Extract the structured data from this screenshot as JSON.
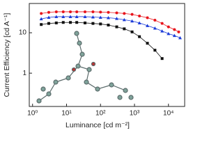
{
  "chart_data": {
    "type": "line",
    "x_label": "Luminance [cd m⁻²]",
    "y_label": "Current Efficiency [cd A⁻¹]",
    "log_x": true,
    "log_y": true,
    "xlim": [
      0.8,
      30000
    ],
    "ylim": [
      0.15,
      53
    ],
    "xticks": [
      {
        "value": 1,
        "label": "10⁰"
      },
      {
        "value": 10,
        "label": "10¹"
      },
      {
        "value": 100,
        "label": "10²"
      },
      {
        "value": 1000,
        "label": "10³"
      },
      {
        "value": 10000,
        "label": "10⁴"
      }
    ],
    "yticks": [
      1,
      10
    ],
    "series": [
      {
        "color": "#e8141c",
        "marker": "circle",
        "x": [
          1.8,
          3,
          5,
          8,
          13,
          20,
          35,
          60,
          100,
          170,
          300,
          500,
          850,
          1400,
          2400,
          4000,
          6500,
          10000,
          15000,
          20000
        ],
        "values": [
          30,
          32,
          33,
          33,
          33,
          33,
          33,
          33,
          32.5,
          32,
          31,
          30,
          28.5,
          26,
          23.5,
          20.5,
          17,
          14,
          12,
          10.5
        ]
      },
      {
        "color": "#1a3ad8",
        "marker": "triangle",
        "x": [
          1.8,
          3,
          5,
          8,
          13,
          20,
          35,
          60,
          100,
          170,
          300,
          500,
          850,
          1400,
          2400,
          4000,
          6500,
          10000,
          15000,
          22000
        ],
        "values": [
          22,
          24,
          25,
          25,
          25,
          25,
          25,
          24.5,
          24,
          23.5,
          22.5,
          21,
          19.5,
          17.5,
          15,
          13,
          11,
          9.5,
          8.5,
          7.5
        ]
      },
      {
        "color": "#111111",
        "marker": "square",
        "x": [
          1.8,
          3,
          5,
          8,
          13,
          20,
          35,
          60,
          100,
          170,
          300,
          500,
          850,
          1400,
          2400,
          4000,
          6500
        ],
        "values": [
          16,
          17,
          17.5,
          18,
          18,
          18,
          17.5,
          17,
          16.5,
          15.5,
          14,
          12.5,
          10.5,
          8,
          5.5,
          3.7,
          2.3
        ]
      }
    ]
  }
}
